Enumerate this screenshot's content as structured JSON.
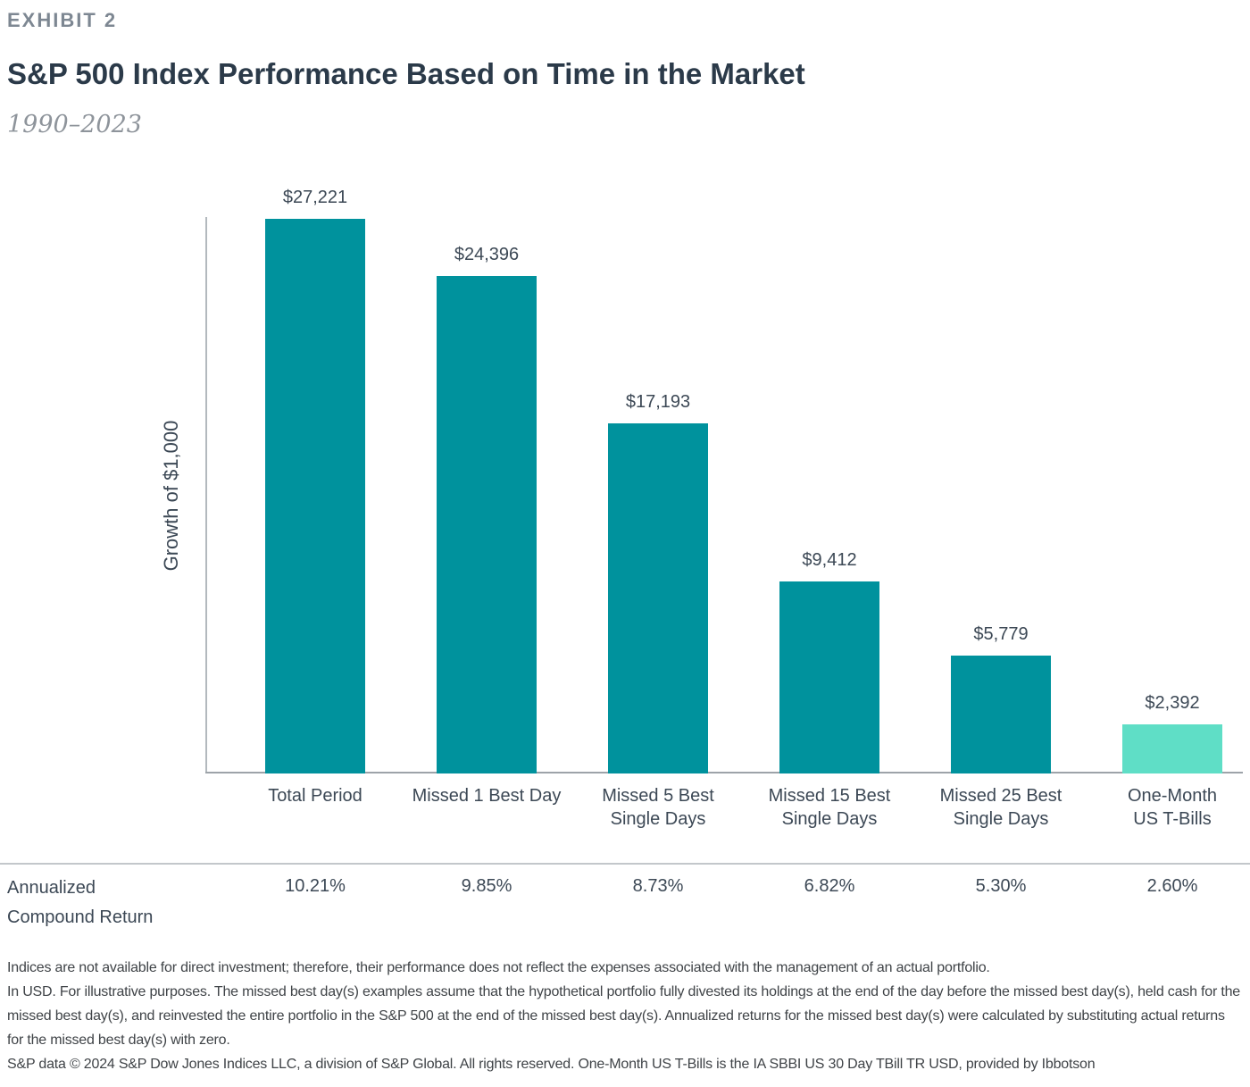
{
  "header": {
    "exhibit": "EXHIBIT 2",
    "title": "S&P 500 Index Performance Based on Time in the Market",
    "subtitle": "1990–2023"
  },
  "chart_data": {
    "type": "bar",
    "title": "S&P 500 Index Performance Based on Time in the Market",
    "subtitle": "1990–2023",
    "xlabel": "",
    "ylabel": "Growth of $1,000",
    "ylim": [
      0,
      27221
    ],
    "grid": false,
    "legend": "none",
    "categories": [
      "Total Period",
      "Missed 1 Best Day",
      "Missed 5 Best\nSingle Days",
      "Missed 15 Best\nSingle Days",
      "Missed 25 Best\nSingle Days",
      "One-Month\nUS T-Bills"
    ],
    "values": [
      27221,
      24396,
      17193,
      9412,
      5779,
      2392
    ],
    "value_labels": [
      "$27,221",
      "$24,396",
      "$17,193",
      "$9,412",
      "$5,779",
      "$2,392"
    ],
    "bar_colors": [
      "#00929D",
      "#00929D",
      "#00929D",
      "#00929D",
      "#00929D",
      "#5FDEC6"
    ],
    "annualized_compound_return": {
      "label": "Annualized\nCompound Return",
      "values": [
        "10.21%",
        "9.85%",
        "8.73%",
        "6.82%",
        "5.30%",
        "2.60%"
      ]
    }
  },
  "colors": {
    "bar_teal": "#00929D",
    "bar_light_teal": "#5FDEC6",
    "title_navy": "#2B3A49",
    "chart_text": "#3C4855"
  },
  "footnotes": [
    "Indices are not available for direct investment; therefore, their performance does not reflect the expenses associated with the management of an actual portfolio.",
    "In USD. For illustrative purposes. The missed best day(s) examples assume that the hypothetical portfolio fully divested its holdings at the end of the day before the missed best day(s), held cash for the missed best day(s), and reinvested the entire portfolio in the S&P 500 at the end of the missed best day(s). Annualized returns for the missed best day(s) were calculated by substituting actual returns for the missed best day(s) with zero.",
    "S&P data © 2024 S&P Dow Jones Indices LLC, a division of S&P Global. All rights reserved. One-Month US T-Bills is the IA SBBI US 30 Day TBill TR USD, provided by Ibbotson"
  ]
}
